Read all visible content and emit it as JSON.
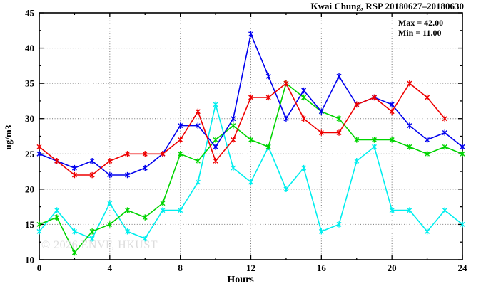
{
  "title": "Kwai Chung, RSP 20180627–20180630",
  "watermark": "© 2026 ENVF, HKUST",
  "annotation": {
    "max_label": "Max = 42.00",
    "min_label": "Min = 11.00"
  },
  "chart_data": {
    "type": "line",
    "title": "Kwai Chung, RSP 20180627–20180630",
    "xlabel": "Hours",
    "ylabel": "ug/m3",
    "xlim": [
      0,
      24
    ],
    "ylim": [
      10,
      45
    ],
    "x_major_ticks": [
      0,
      4,
      8,
      12,
      16,
      20,
      24
    ],
    "x_minor_step": 2,
    "y_major_ticks": [
      10,
      15,
      20,
      25,
      30,
      35,
      40,
      45
    ],
    "y_minor_step": 2.5,
    "grid": true,
    "legend_position": "none",
    "x_start": 0,
    "x_step": 1,
    "stats": {
      "max": 42.0,
      "min": 11.0
    },
    "series": [
      {
        "name": "cyan",
        "color": "#00eeee",
        "values": [
          14,
          17,
          14,
          13,
          18,
          14,
          13,
          17,
          17,
          21,
          32,
          23,
          21,
          26,
          20,
          23,
          14,
          15,
          24,
          26,
          17,
          17,
          14,
          17,
          15
        ]
      },
      {
        "name": "green",
        "color": "#00d400",
        "values": [
          15,
          16,
          11,
          14,
          15,
          17,
          16,
          18,
          25,
          24,
          27,
          29,
          27,
          26,
          35,
          33,
          31,
          30,
          27,
          27,
          27,
          26,
          25,
          26,
          25
        ]
      },
      {
        "name": "blue",
        "color": "#0000ee",
        "values": [
          25,
          24,
          23,
          24,
          22,
          22,
          23,
          25,
          29,
          29,
          26,
          30,
          42,
          36,
          30,
          34,
          31,
          36,
          32,
          33,
          32,
          29,
          27,
          28,
          26
        ]
      },
      {
        "name": "red",
        "color": "#ee0000",
        "values": [
          26,
          24,
          22,
          22,
          24,
          25,
          25,
          25,
          27,
          31,
          24,
          27,
          33,
          33,
          35,
          30,
          28,
          28,
          32,
          33,
          31,
          35,
          33,
          30
        ]
      }
    ]
  }
}
